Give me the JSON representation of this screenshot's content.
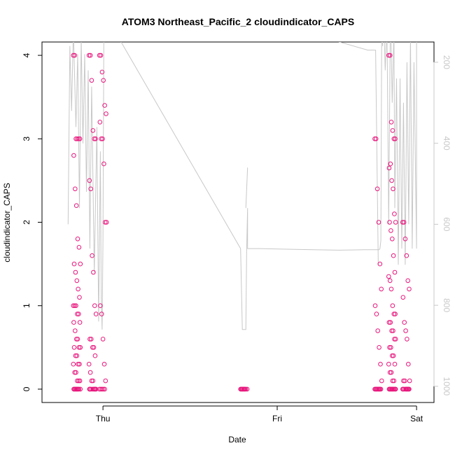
{
  "chart_data": {
    "type": "scatter",
    "title": "ATOM3 Northeast_Pacific_2 cloudindicator_CAPS",
    "xlabel": "Date",
    "ylabel": "cloudindicator_CAPS",
    "x_ticks": [
      "Thu",
      "Fri",
      "Sat"
    ],
    "ylim": [
      0,
      4
    ],
    "y_ticks": [
      "0",
      "1",
      "2",
      "3",
      "4"
    ],
    "y2_ticks": [
      "200",
      "400",
      "600",
      "800",
      "1000"
    ],
    "y2lim": [
      1000,
      200
    ],
    "colors": {
      "points": "#e8177d",
      "line": "#c8c8c8",
      "axis": "#000000",
      "axis_right": "#c8c8c8"
    },
    "series": [
      {
        "kind": "points",
        "groups": [
          {
            "day": 0.05,
            "values": [
              4,
              4,
              3,
              3,
              3,
              3,
              2.8,
              2.4,
              2.2,
              1.8,
              1.7,
              1.5,
              1.5,
              1.4,
              1.3,
              1.2,
              1.1,
              1,
              1,
              1,
              0.9,
              0.9,
              0.8,
              0.8,
              0.7,
              0.6,
              0.6,
              0.5,
              0.5,
              0.5,
              0.4,
              0.4,
              0.3,
              0.3,
              0.3,
              0.2,
              0.2,
              0.1,
              0.1,
              0.1,
              0,
              0,
              0,
              0,
              0,
              0,
              0,
              0,
              0,
              0
            ]
          },
          {
            "day": 0.14,
            "values": [
              4,
              4,
              3.7,
              3.1,
              3,
              3,
              2.5,
              2.4,
              1.6,
              1.4,
              1,
              0.9,
              0.6,
              0.6,
              0.5,
              0.5,
              0.4,
              0.3,
              0.2,
              0.1,
              0.1,
              0,
              0,
              0,
              0,
              0,
              0,
              0,
              0,
              0
            ]
          },
          {
            "day": 0.2,
            "values": [
              4,
              4,
              3.8,
              3.7,
              3.4,
              3.3,
              3.2,
              3,
              3,
              2.7,
              2,
              2,
              1,
              0.9,
              0.6,
              0.3,
              0.1,
              0,
              0,
              0,
              0,
              0
            ]
          },
          {
            "day": 1.01,
            "values": [
              0,
              0,
              0,
              0,
              0,
              0,
              0,
              0,
              0,
              0
            ]
          },
          {
            "day": 1.78,
            "values": [
              3,
              3,
              2.4,
              2,
              1.5,
              1.2,
              1,
              0.9,
              0.7,
              0.5,
              0.3,
              0.1,
              0,
              0,
              0,
              0,
              0,
              0,
              0,
              0,
              0,
              0
            ]
          },
          {
            "day": 1.86,
            "values": [
              4,
              4,
              3.2,
              3.1,
              3,
              3,
              2.65,
              2.7,
              2.5,
              2.4,
              2.1,
              2,
              2,
              1.9,
              1.8,
              1.6,
              1.4,
              1.35,
              1.3,
              1.2,
              1,
              0.9,
              0.9,
              0.8,
              0.8,
              0.7,
              0.7,
              0.6,
              0.6,
              0.5,
              0.5,
              0.4,
              0.4,
              0.3,
              0.3,
              0.2,
              0.2,
              0.1,
              0.1,
              0,
              0,
              0,
              0,
              0,
              0,
              0,
              0,
              0,
              0,
              0
            ]
          },
          {
            "day": 1.94,
            "values": [
              2,
              2,
              1.8,
              1.6,
              1.3,
              1.2,
              1.1,
              0.8,
              0.7,
              0.6,
              0.3,
              0.1,
              0.1,
              0.1,
              0,
              0,
              0,
              0,
              0,
              0,
              0,
              0,
              0,
              0
            ]
          }
        ]
      },
      {
        "kind": "line",
        "axis": "right",
        "points": [
          [
            0.0,
            600
          ],
          [
            0.01,
            160
          ],
          [
            0.02,
            320
          ],
          [
            0.03,
            120
          ],
          [
            0.045,
            360
          ],
          [
            0.055,
            180
          ],
          [
            0.065,
            560
          ],
          [
            0.075,
            140
          ],
          [
            0.085,
            400
          ],
          [
            0.095,
            180
          ],
          [
            0.105,
            520
          ],
          [
            0.115,
            220
          ],
          [
            0.125,
            660
          ],
          [
            0.135,
            260
          ],
          [
            0.15,
            720
          ],
          [
            0.165,
            360
          ],
          [
            0.175,
            840
          ],
          [
            0.185,
            420
          ],
          [
            0.19,
            780
          ],
          [
            0.195,
            860
          ],
          [
            0.2,
            640
          ],
          [
            0.205,
            100
          ],
          [
            0.21,
            80
          ],
          [
            0.99,
            660
          ],
          [
            1.0,
            860
          ],
          [
            1.02,
            860
          ],
          [
            1.025,
            660
          ],
          [
            1.03,
            560
          ],
          [
            1.03,
            660
          ],
          [
            1.1,
            660
          ],
          [
            1.3,
            662
          ],
          [
            1.55,
            664
          ],
          [
            1.7,
            663
          ],
          [
            1.785,
            663
          ],
          [
            1.79,
            660
          ],
          [
            1.795,
            640
          ],
          [
            1.8,
            120
          ],
          [
            1.805,
            160
          ],
          [
            1.81,
            60
          ],
          [
            1.82,
            220
          ],
          [
            1.83,
            100
          ],
          [
            1.84,
            600
          ],
          [
            1.85,
            60
          ],
          [
            1.86,
            300
          ],
          [
            1.87,
            120
          ],
          [
            1.875,
            560
          ],
          [
            1.885,
            240
          ],
          [
            1.895,
            700
          ],
          [
            1.905,
            240
          ],
          [
            1.915,
            660
          ],
          [
            1.925,
            300
          ],
          [
            1.935,
            700
          ],
          [
            1.945,
            200
          ],
          [
            1.955,
            600
          ],
          [
            1.965,
            140
          ],
          [
            1.975,
            660
          ],
          [
            1.985,
            200
          ],
          [
            2.0,
            660
          ],
          [
            2.0,
            60
          ]
        ],
        "extra_segments": [
          [
            [
              0.75,
              50
            ],
            [
              1.72,
              170
            ],
            [
              1.765,
              170
            ],
            [
              1.78,
              700
            ]
          ],
          [
            [
              1.02,
              560
            ],
            [
              1.03,
              460
            ]
          ]
        ]
      }
    ]
  }
}
